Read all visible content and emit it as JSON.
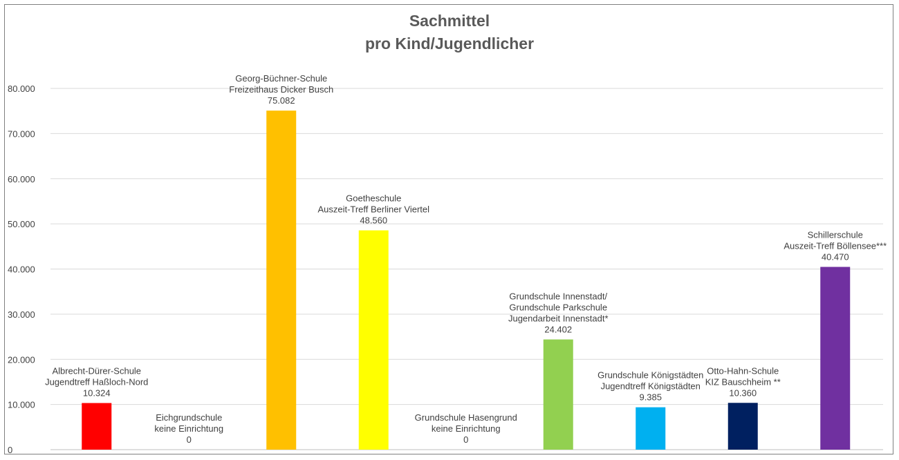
{
  "chart_data": {
    "type": "bar",
    "title": [
      "Sachmittel",
      "pro Kind/Jugendlicher"
    ],
    "xlabel": "",
    "ylabel": "",
    "ylim": [
      0,
      80000
    ],
    "ytick_values": [
      0,
      10000,
      20000,
      30000,
      40000,
      50000,
      60000,
      70000,
      80000
    ],
    "ytick_labels": [
      "0",
      "10.000",
      "20.000",
      "30.000",
      "40.000",
      "50.000",
      "60.000",
      "70.000",
      "80.000"
    ],
    "grid": true,
    "legend": "none",
    "bars": [
      {
        "label_lines": [
          "Albrecht-Dürer-Schule",
          "Jugendtreff Haßloch-Nord"
        ],
        "value": 10324,
        "value_label": "10.324",
        "color": "#ff0000"
      },
      {
        "label_lines": [
          "Eichgrundschule",
          "keine Einrichtung"
        ],
        "value": 0,
        "value_label": "0",
        "color": "#ffffff"
      },
      {
        "label_lines": [
          "Georg-Büchner-Schule",
          "Freizeithaus Dicker Busch"
        ],
        "value": 75082,
        "value_label": "75.082",
        "color": "#ffc000"
      },
      {
        "label_lines": [
          "Goetheschule",
          "Auszeit-Treff Berliner Viertel"
        ],
        "value": 48560,
        "value_label": "48.560",
        "color": "#ffff00"
      },
      {
        "label_lines": [
          "Grundschule Hasengrund",
          "keine Einrichtung"
        ],
        "value": 0,
        "value_label": "0",
        "color": "#ffffff"
      },
      {
        "label_lines": [
          "Grundschule Innenstadt/",
          "Grundschule Parkschule",
          "Jugendarbeit Innenstadt*"
        ],
        "value": 24402,
        "value_label": "24.402",
        "color": "#92d050"
      },
      {
        "label_lines": [
          "Grundschule Königstädten",
          "Jugendtreff Königstädten"
        ],
        "value": 9385,
        "value_label": "9.385",
        "color": "#00b0f0"
      },
      {
        "label_lines": [
          "Otto-Hahn-Schule",
          "KIZ Bauschheim **"
        ],
        "value": 10360,
        "value_label": "10.360",
        "color": "#002060"
      },
      {
        "label_lines": [
          "Schillerschule",
          "Auszeit-Treff Böllensee***"
        ],
        "value": 40470,
        "value_label": "40.470",
        "color": "#7030a0"
      }
    ]
  }
}
